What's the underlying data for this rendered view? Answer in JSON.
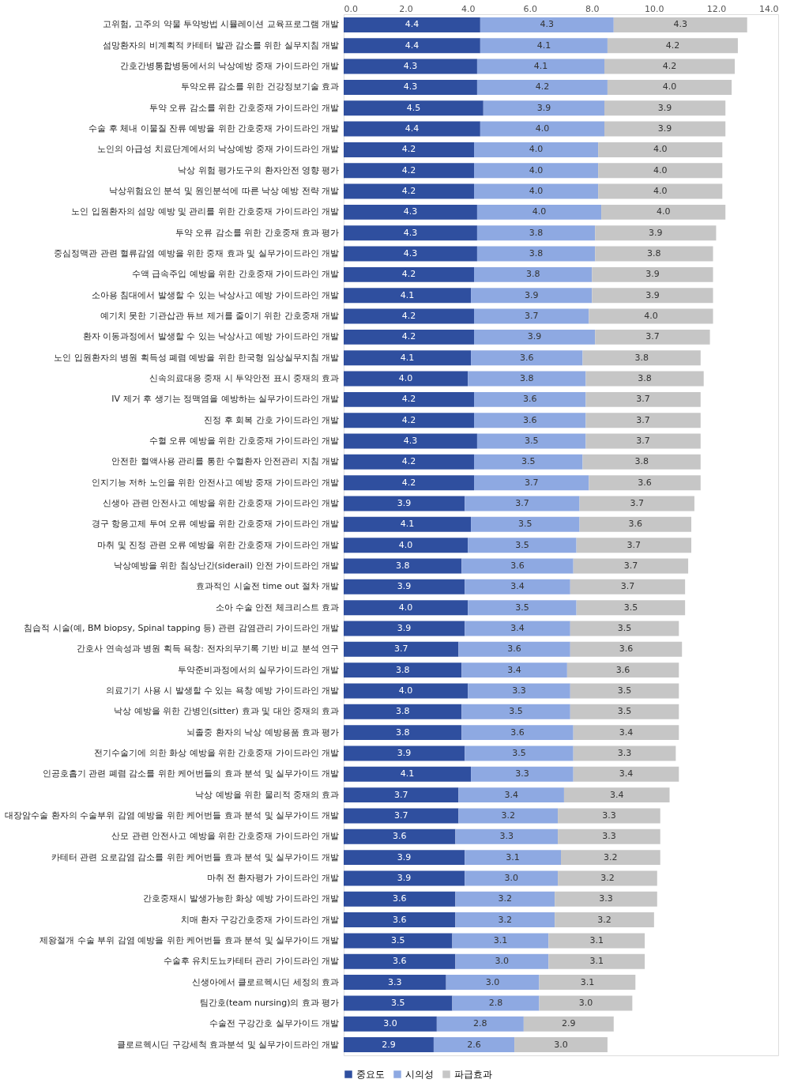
{
  "chart_data": {
    "type": "bar",
    "orientation": "horizontal",
    "stacked": true,
    "grid": false,
    "legend": "bottom",
    "categories": [
      "고위험, 고주의 약물 투약방법 시뮬레이션 교육프로그램 개발",
      "섬망환자의 비계획적 카테터 발관 감소를 위한 실무지침 개발",
      "간호간병통합병동에서의 낙상예방 중재 가이드라인 개발",
      "투약오류 감소를 위한 건강정보기술 효과",
      "투약 오류 감소를 위한 간호중재 가이드라인 개발",
      "수술 후 체내 이물질 잔류 예방을 위한 간호중재 가이드라인 개발",
      "노인의 아급성 치료단계에서의 낙상예방 중재 가이드라인 개발",
      "낙상 위험 평가도구의 환자안전 영향 평가",
      "낙상위험요인 분석 및 원인분석에 따른 낙상 예방 전략 개발",
      "노인 입원환자의 섬망 예방 및 관리를 위한 간호중재 가이드라인 개발",
      "투약 오류 감소를 위한 간호중재 효과 평가",
      "중심정맥관 관련 혈류감염 예방을 위한 중재 효과 및 실무가이드라인 개발",
      "수액 급속주입 예방을 위한 간호중재 가이드라인 개발",
      "소아용 침대에서 발생할 수 있는 낙상사고 예방 가이드라인 개발",
      "예기치 못한 기관삽관 튜브 제거를 줄이기 위한 간호중재 개발",
      "환자 이동과정에서 발생할 수 있는 낙상사고 예방 가이드라인 개발",
      "노인 입원환자의 병원 획득성 폐렴 예방을 위한 한국형 임상실무지침 개발",
      "신속의료대응 중재 시 투약안전 표시 중재의 효과",
      "IV 제거 후 생기는 정맥염을 예방하는 실무가이드라인 개발",
      "진정 후 회복 간호 가이드라인 개발",
      "수혈 오류 예방을 위한 간호중재 가이드라인 개발",
      "안전한 혈액사용 관리를 통한 수혈환자 안전관리 지침 개발",
      "인지기능 저하 노인을 위한 안전사고 예방 중재 가이드라인 개발",
      "신생아 관련 안전사고 예방을 위한 간호중재 가이드라인 개발",
      "경구 항응고제 투여 오류 예방을 위한 간호중재 가이드라인 개발",
      "마취 및 진정 관련 오류 예방을 위한 간호중재 가이드라인 개발",
      "낙상예방을 위한 침상난간(siderail) 안전 가이드라인 개발",
      "효과적인 시술전 time out 절차 개발",
      "소아 수술 안전 체크리스트 효과",
      "침습적 시술(예, BM biopsy, Spinal tapping 등) 관련 감염관리 가이드라인 개발",
      "간호사 연속성과 병원 획득 욕창: 전자의무기록 기반 비교 분석 연구",
      "투약준비과정에서의 실무가이드라인 개발",
      "의료기기 사용 시 발생할 수 있는 욕창 예방 가이드라인 개발",
      "낙상 예방을 위한 간병인(sitter) 효과 및 대안 중재의 효과",
      "뇌졸중 환자의 낙상 예방용품 효과 평가",
      "전기수술기에 의한 화상 예방을 위한 간호중재 가이드라인 개발",
      "인공호흡기 관련 폐렴 감소를 위한 케어번들의 효과 분석 및 실무가이드 개발",
      "낙상 예방을 위한 물리적 중재의 효과",
      "대장암수술 환자의 수술부위 감염 예방을 위한 케어번들 효과 분석 및 실무가이드 개발",
      "산모 관련 안전사고 예방을 위한 간호중재 가이드라인 개발",
      "카테터 관련 요로감염 감소를 위한 케어번들 효과 분석 및 실무가이드 개발",
      "마취 전 환자평가 가이드라인 개발",
      "간호중재시 발생가능한 화상 예방 가이드라인 개발",
      "치매 환자 구강간호중재 가이드라인 개발",
      "제왕절개 수술 부위 감염 예방을 위한 케어번들 효과 분석 및 실무가이드 개발",
      "수술후 유치도뇨카테터 관리 가이드라인 개발",
      "신생아에서 클로르헥시딘 세정의 효과",
      "팀간호(team nursing)의 효과 평가",
      "수술전 구강간호 실무가이드 개발",
      "클로르헥시딘 구강세척 효과분석 및 실무가이드라인 개발"
    ],
    "series": [
      {
        "name": "중요도",
        "color": "#2f4f9f",
        "values": [
          4.4,
          4.4,
          4.3,
          4.3,
          4.5,
          4.4,
          4.2,
          4.2,
          4.2,
          4.3,
          4.3,
          4.3,
          4.2,
          4.1,
          4.2,
          4.2,
          4.1,
          4.0,
          4.2,
          4.2,
          4.3,
          4.2,
          4.2,
          3.9,
          4.1,
          4.0,
          3.8,
          3.9,
          4.0,
          3.9,
          3.7,
          3.8,
          4.0,
          3.8,
          3.8,
          3.9,
          4.1,
          3.7,
          3.7,
          3.6,
          3.9,
          3.9,
          3.6,
          3.6,
          3.5,
          3.6,
          3.3,
          3.5,
          3.0,
          2.9
        ],
        "value_labels": [
          "4.4",
          "4.4",
          "4.3",
          "4.3",
          "4.5",
          "4.4",
          "4.2",
          "4.2",
          "4.2",
          "4.3",
          "4.3",
          "4.3",
          "4.2",
          "4.1",
          "4.2",
          "4.2",
          "4.1",
          "4.0",
          "4.2",
          "4.2",
          "4.3",
          "4.2",
          "4.2",
          "3.9",
          "4.1",
          "4.0",
          "3.8",
          "3.9",
          "4.0",
          "3.9",
          "3.7",
          "3.8",
          "4.0",
          "3.8",
          "3.8",
          "3.9",
          "4.1",
          "3.7",
          "3.7",
          "3.6",
          "3.9",
          "3.9",
          "3.6",
          "3.6",
          "3.5",
          "3.6",
          "3.3",
          "3.5",
          "3.0",
          "2.9"
        ]
      },
      {
        "name": "시의성",
        "color": "#8ea9e2",
        "values": [
          4.3,
          4.1,
          4.1,
          4.2,
          3.9,
          4.0,
          4.0,
          4.0,
          4.0,
          4.0,
          3.8,
          3.8,
          3.8,
          3.9,
          3.7,
          3.9,
          3.6,
          3.8,
          3.6,
          3.6,
          3.5,
          3.5,
          3.7,
          3.7,
          3.5,
          3.5,
          3.6,
          3.4,
          3.5,
          3.4,
          3.6,
          3.4,
          3.3,
          3.5,
          3.6,
          3.5,
          3.3,
          3.4,
          3.2,
          3.3,
          3.1,
          3.0,
          3.2,
          3.2,
          3.1,
          3.0,
          3.0,
          2.8,
          2.8,
          2.6
        ],
        "value_labels": [
          "4.3",
          "4.1",
          "4.1",
          "4.2",
          "3.9",
          "4.0",
          "4.0",
          "4.0",
          "4.0",
          "4.0",
          "3.8",
          "3.8",
          "3.8",
          "3.9",
          "3.7",
          "3.9",
          "3.6",
          "3.8",
          "3.6",
          "3.6",
          "3.5",
          "3.5",
          "3.7",
          "3.7",
          "3.5",
          "3.5",
          "3.6",
          "3.4",
          "3.5",
          "3.4",
          "3.6",
          "3.4",
          "3.3",
          "3.5",
          "3.6",
          "3.5",
          "3.3",
          "3.4",
          "3.2",
          "3.3",
          "3.1",
          "3.0",
          "3.2",
          "3.2",
          "3.1",
          "3.0",
          "3.0",
          "2.8",
          "2.8",
          "2.6"
        ]
      },
      {
        "name": "파급효과",
        "color": "#c6c6c6",
        "values": [
          4.3,
          4.2,
          4.2,
          4.0,
          3.9,
          3.9,
          4.0,
          4.0,
          4.0,
          4.0,
          3.9,
          3.8,
          3.9,
          3.9,
          4.0,
          3.7,
          3.8,
          3.8,
          3.7,
          3.7,
          3.7,
          3.8,
          3.6,
          3.7,
          3.6,
          3.7,
          3.7,
          3.7,
          3.5,
          3.5,
          3.6,
          3.6,
          3.5,
          3.5,
          3.4,
          3.3,
          3.4,
          3.4,
          3.3,
          3.3,
          3.2,
          3.2,
          3.3,
          3.2,
          3.1,
          3.1,
          3.1,
          3.0,
          2.9,
          3.0
        ],
        "value_labels": [
          "4.3",
          "4.2",
          "4.2",
          "4.0",
          "3.9",
          "3.9",
          "4.0",
          "4.0",
          "4.0",
          "4.0",
          "3.9",
          "3.8",
          "3.9",
          "3.9",
          "4.0",
          "3.7",
          "3.8",
          "3.8",
          "3.7",
          "3.7",
          "3.7",
          "3.8",
          "3.6",
          "3.7",
          "3.6",
          "3.7",
          "3.7",
          "3.7",
          "3.5",
          "3.5",
          "3.6",
          "3.6",
          "3.5",
          "3.5",
          "3.4",
          "3.3",
          "3.4",
          "3.4",
          "3.3",
          "3.3",
          "3.2",
          "3.2",
          "3.3",
          "3.2",
          "3.1",
          "3.1",
          "3.1",
          "3.0",
          "2.9",
          "3.0"
        ]
      }
    ],
    "xlim": [
      0,
      14
    ],
    "xticks": [
      {
        "value": 0,
        "label": "0.0"
      },
      {
        "value": 2,
        "label": "2.0"
      },
      {
        "value": 4,
        "label": "4.0"
      },
      {
        "value": 6,
        "label": "6.0"
      },
      {
        "value": 8,
        "label": "8.0"
      },
      {
        "value": 10,
        "label": "10.0"
      },
      {
        "value": 12,
        "label": "12.0"
      },
      {
        "value": 14,
        "label": "14.0"
      }
    ]
  }
}
